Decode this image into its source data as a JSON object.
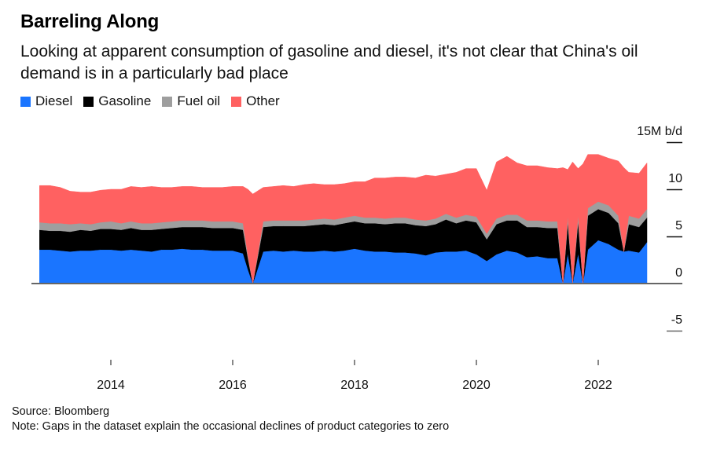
{
  "chart_data": {
    "type": "area",
    "stacked": true,
    "title": "Barreling Along",
    "subtitle": "Looking at apparent consumption of gasoline and diesel, it's not clear that China's oil demand is in a particularly bad place",
    "ylabel": "M b/d",
    "y_unit_label": "15M b/d",
    "ylim": [
      -5,
      15
    ],
    "yticks": [
      15,
      10,
      5,
      0,
      -5
    ],
    "ytick_labels": [
      "15M b/d",
      "10",
      "5",
      "0",
      "-5"
    ],
    "xlim": [
      2012.3,
      2023.6
    ],
    "xticks": [
      2014,
      2016,
      2018,
      2020,
      2022
    ],
    "xtick_labels": [
      "2014",
      "2016",
      "2018",
      "2020",
      "2022"
    ],
    "legend_position": "top-left",
    "grid": false,
    "series_colors": {
      "Diesel": "#1a75ff",
      "Gasoline": "#000000",
      "Fuel oil": "#9e9e9e",
      "Other": "#ff6161"
    },
    "x": [
      2012.83,
      2013.0,
      2013.17,
      2013.33,
      2013.5,
      2013.67,
      2013.83,
      2014.0,
      2014.17,
      2014.33,
      2014.5,
      2014.67,
      2014.83,
      2015.0,
      2015.17,
      2015.33,
      2015.5,
      2015.67,
      2015.83,
      2016.0,
      2016.17,
      2016.25,
      2016.33,
      2016.5,
      2016.67,
      2016.83,
      2017.0,
      2017.17,
      2017.33,
      2017.5,
      2017.67,
      2017.83,
      2018.0,
      2018.17,
      2018.33,
      2018.5,
      2018.67,
      2018.83,
      2019.0,
      2019.17,
      2019.33,
      2019.5,
      2019.67,
      2019.83,
      2020.0,
      2020.17,
      2020.33,
      2020.5,
      2020.67,
      2020.83,
      2021.0,
      2021.17,
      2021.33,
      2021.42,
      2021.5,
      2021.58,
      2021.67,
      2021.75,
      2021.83,
      2022.0,
      2022.17,
      2022.33,
      2022.42,
      2022.5,
      2022.67,
      2022.8
    ],
    "series": [
      {
        "name": "Diesel",
        "values": [
          3.6,
          3.6,
          3.5,
          3.4,
          3.5,
          3.5,
          3.6,
          3.6,
          3.5,
          3.6,
          3.5,
          3.4,
          3.6,
          3.6,
          3.7,
          3.6,
          3.6,
          3.5,
          3.5,
          3.5,
          3.2,
          1.5,
          0.0,
          3.4,
          3.5,
          3.4,
          3.5,
          3.4,
          3.4,
          3.5,
          3.4,
          3.5,
          3.7,
          3.5,
          3.4,
          3.4,
          3.3,
          3.3,
          3.2,
          3.0,
          3.3,
          3.4,
          3.4,
          3.5,
          3.1,
          2.4,
          3.1,
          3.5,
          3.3,
          2.8,
          2.9,
          2.7,
          2.7,
          0.0,
          3.2,
          0.0,
          3.2,
          0.0,
          3.6,
          4.6,
          4.2,
          3.6,
          3.4,
          3.5,
          3.3,
          4.4
        ]
      },
      {
        "name": "Gasoline",
        "values": [
          2.1,
          2.0,
          2.1,
          2.1,
          2.2,
          2.1,
          2.2,
          2.2,
          2.2,
          2.3,
          2.2,
          2.3,
          2.2,
          2.3,
          2.3,
          2.4,
          2.4,
          2.4,
          2.4,
          2.4,
          2.5,
          1.2,
          0.0,
          2.6,
          2.6,
          2.7,
          2.6,
          2.7,
          2.8,
          2.8,
          2.8,
          2.9,
          2.9,
          2.9,
          3.0,
          2.9,
          3.1,
          3.1,
          3.0,
          3.1,
          3.0,
          3.4,
          3.0,
          3.2,
          3.4,
          2.3,
          3.2,
          3.2,
          3.4,
          3.2,
          3.1,
          3.2,
          3.2,
          0.0,
          3.3,
          0.0,
          3.4,
          0.0,
          3.6,
          3.3,
          3.3,
          2.8,
          0.0,
          2.8,
          2.7,
          2.6
        ]
      },
      {
        "name": "Fuel oil",
        "values": [
          0.8,
          0.8,
          0.8,
          0.8,
          0.7,
          0.7,
          0.7,
          0.8,
          0.7,
          0.7,
          0.7,
          0.7,
          0.7,
          0.7,
          0.7,
          0.7,
          0.7,
          0.7,
          0.7,
          0.7,
          0.7,
          0.3,
          0.0,
          0.6,
          0.6,
          0.6,
          0.6,
          0.6,
          0.6,
          0.6,
          0.6,
          0.6,
          0.6,
          0.6,
          0.6,
          0.6,
          0.6,
          0.6,
          0.6,
          0.6,
          0.6,
          0.6,
          0.6,
          0.6,
          0.6,
          0.6,
          0.6,
          0.6,
          0.6,
          0.7,
          0.7,
          0.7,
          0.7,
          0.0,
          0.7,
          0.0,
          0.7,
          0.0,
          0.8,
          0.8,
          0.8,
          0.8,
          0.0,
          0.9,
          0.9,
          0.9
        ]
      },
      {
        "name": "Other",
        "values": [
          3.9,
          4.0,
          3.8,
          3.5,
          3.3,
          3.4,
          3.4,
          3.4,
          3.6,
          3.7,
          3.8,
          3.9,
          3.7,
          3.6,
          3.6,
          3.6,
          3.5,
          3.6,
          3.6,
          3.7,
          3.9,
          7.0,
          9.5,
          3.6,
          3.6,
          3.7,
          3.6,
          3.8,
          3.8,
          3.6,
          3.7,
          3.6,
          3.6,
          3.8,
          4.2,
          4.3,
          4.3,
          4.3,
          4.4,
          4.8,
          4.5,
          4.2,
          4.8,
          4.9,
          5.1,
          4.6,
          6.0,
          6.2,
          5.5,
          5.8,
          5.8,
          5.7,
          5.6,
          12.3,
          4.9,
          12.9,
          4.9,
          12.7,
          5.7,
          5.0,
          5.0,
          5.8,
          8.9,
          4.6,
          4.8,
          4.9
        ]
      }
    ]
  },
  "header": {
    "title": "Barreling Along",
    "subtitle": "Looking at apparent consumption of gasoline and diesel, it's not clear that China's oil demand is in a particularly bad place"
  },
  "legend": {
    "items": [
      {
        "label": "Diesel",
        "color": "#1a75ff"
      },
      {
        "label": "Gasoline",
        "color": "#000000"
      },
      {
        "label": "Fuel oil",
        "color": "#9e9e9e"
      },
      {
        "label": "Other",
        "color": "#ff6161"
      }
    ]
  },
  "footer": {
    "source": "Source: Bloomberg",
    "note": "Note: Gaps in the dataset explain the occasional declines of product categories to zero"
  }
}
